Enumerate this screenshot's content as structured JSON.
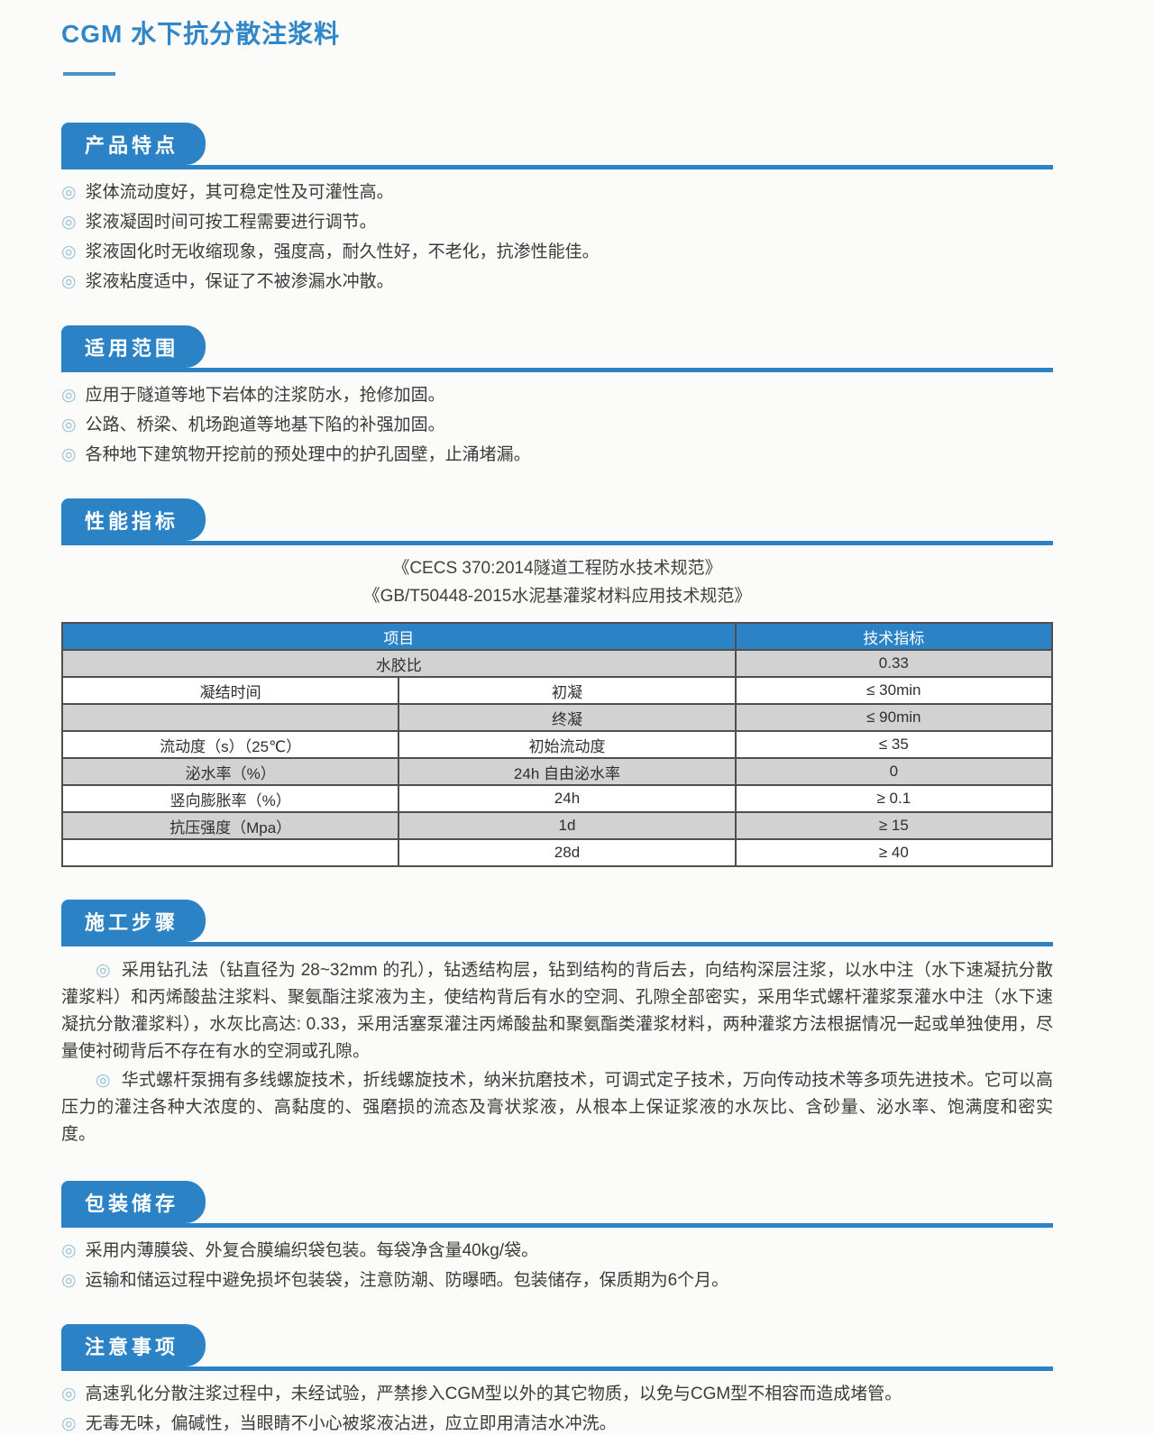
{
  "ui": {
    "bullet_glyph": "◎",
    "colors": {
      "primary_blue": "#2b82c5",
      "title_blue": "#2f86c8",
      "table_header_blue": "#2b82c5",
      "row_gray": "#d2d2d2",
      "bullet_ring": "#95c0d8"
    }
  },
  "page": {
    "title": "CGM 水下抗分散注浆料"
  },
  "features": {
    "heading": "产品特点",
    "items": [
      "浆体流动度好，其可稳定性及可灌性高。",
      "浆液凝固时间可按工程需要进行调节。",
      "浆液固化时无收缩现象，强度高，耐久性好，不老化，抗渗性能佳。",
      "浆液粘度适中，保证了不被渗漏水冲散。"
    ]
  },
  "scope": {
    "heading": "适用范围",
    "items": [
      "应用于隧道等地下岩体的注浆防水，抢修加固。",
      "公路、桥梁、机场跑道等地基下陷的补强加固。",
      "各种地下建筑物开挖前的预处理中的护孔固壁，止涌堵漏。"
    ]
  },
  "performance": {
    "heading": "性能指标",
    "standards": [
      "《CECS 370:2014隧道工程防水技术规范》",
      "《GB/T50448-2015水泥基灌浆材料应用技术规范》"
    ],
    "table": {
      "col_headers": [
        "项目",
        "技术指标"
      ],
      "rows": [
        {
          "item": "水胶比",
          "sub": "",
          "value": "0.33"
        },
        {
          "item": "凝结时间",
          "sub": "初凝",
          "value": "≤ 30min"
        },
        {
          "item": "",
          "sub": "终凝",
          "value": "≤ 90min"
        },
        {
          "item": "流动度（s）（25℃）",
          "sub": "初始流动度",
          "value": "≤ 35"
        },
        {
          "item": "泌水率（%）",
          "sub": "24h 自由泌水率",
          "value": "0"
        },
        {
          "item": "竖向膨胀率（%）",
          "sub": "24h",
          "value": "≥ 0.1"
        },
        {
          "item": "抗压强度（Mpa）",
          "sub": "1d",
          "value": "≥ 15"
        },
        {
          "item": "",
          "sub": "28d",
          "value": "≥ 40"
        }
      ]
    }
  },
  "construction": {
    "heading": "施工步骤",
    "paragraphs": [
      "采用钻孔法（钻直径为 28~32mm 的孔），钻透结构层，钻到结构的背后去，向结构深层注浆，以水中注（水下速凝抗分散灌浆料）和丙烯酸盐注浆料、聚氨酯注浆液为主，使结构背后有水的空洞、孔隙全部密实，采用华式螺杆灌浆泵灌水中注（水下速凝抗分散灌浆料），水灰比高达: 0.33，采用活塞泵灌注丙烯酸盐和聚氨酯类灌浆材料，两种灌浆方法根据情况一起或单独使用，尽量使衬砌背后不存在有水的空洞或孔隙。",
      "华式螺杆泵拥有多线螺旋技术，折线螺旋技术，纳米抗磨技术，可调式定子技术，万向传动技术等多项先进技术。它可以高压力的灌注各种大浓度的、高黏度的、强磨损的流态及膏状浆液，从根本上保证浆液的水灰比、含砂量、泌水率、饱满度和密实度。"
    ]
  },
  "packaging": {
    "heading": "包装储存",
    "items": [
      "采用内薄膜袋、外复合膜编织袋包装。每袋净含量40kg/袋。",
      "运输和储运过程中避免损坏包装袋，注意防潮、防曝晒。包装储存，保质期为6个月。"
    ]
  },
  "precautions": {
    "heading": "注意事项",
    "items": [
      "高速乳化分散注浆过程中，未经试验，严禁掺入CGM型以外的其它物质，以免与CGM型不相容而造成堵管。",
      "无毒无味，偏碱性，当眼睛不小心被浆液沾进，应立即用清洁水冲洗。"
    ]
  }
}
